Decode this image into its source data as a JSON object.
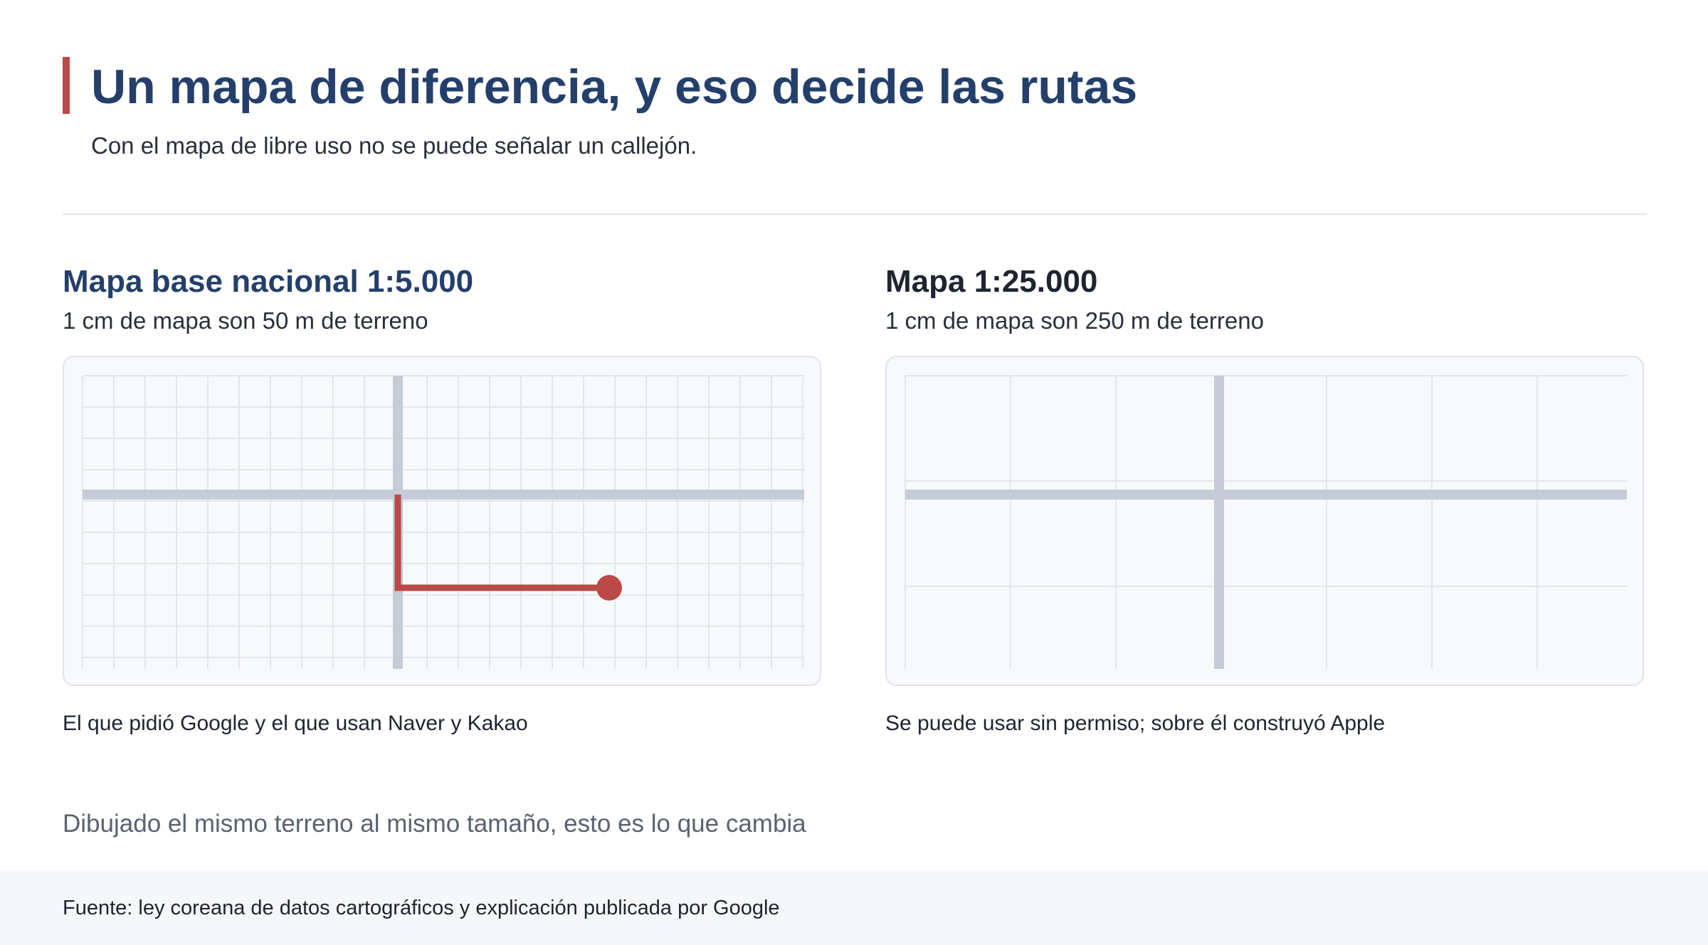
{
  "header": {
    "title": "Un mapa de diferencia, y eso decide las rutas",
    "subtitle": "Con el mapa de libre uso no se puede señalar un callejón."
  },
  "panels": [
    {
      "title": "Mapa base nacional 1:5.000",
      "subtitle": "1 cm de mapa son 50 m de terreno",
      "caption": "El que pidió Google y el que usan Naver y Kakao",
      "title_color": "#243f6b",
      "shows_alley_route": true
    },
    {
      "title": "Mapa 1:25.000",
      "subtitle": "1 cm de mapa son 250 m de terreno",
      "caption": "Se puede usar sin permiso; sobre él construyó Apple",
      "title_color": "#1f2430",
      "shows_alley_route": false
    }
  ],
  "note": "Dibujado el mismo terreno al mismo tamaño, esto es lo que cambia",
  "footer": {
    "source": "Fuente: ley coreana de datos cartográficos y explicación publicada por Google"
  },
  "colors": {
    "accent": "#b94a48",
    "road": "#c5ccd8",
    "grid": "#e3e6eb",
    "title": "#243f6b"
  }
}
